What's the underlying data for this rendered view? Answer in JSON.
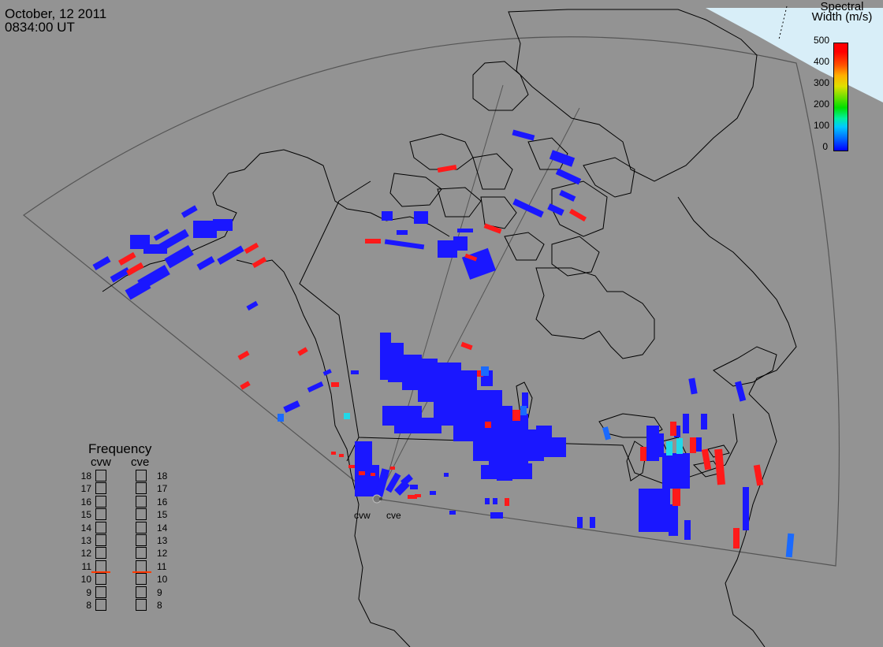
{
  "header": {
    "date": "October, 12 2011",
    "time": "0834:00 UT"
  },
  "colorbar": {
    "title_line1": "Spectral",
    "title_line2": "Width (m/s)",
    "ticks": [
      "500",
      "400",
      "300",
      "200",
      "100",
      "0"
    ],
    "range": [
      0,
      500
    ]
  },
  "frequency_panel": {
    "title": "Frequency",
    "radars": [
      "cvw",
      "cve"
    ],
    "scale": [
      "18",
      "17",
      "16",
      "15",
      "14",
      "13",
      "12",
      "11",
      "10",
      "9",
      "8"
    ],
    "current_mhz": {
      "cvw": 10.6,
      "cve": 10.6
    }
  },
  "sites": [
    "cvw",
    "cve"
  ],
  "colors": {
    "background": "#939393",
    "low_width": "#1a17ff",
    "high_width": "#ff1a1a",
    "mid_width": "#1a6aff",
    "cyan": "#22d8e8",
    "ice": "#d8eef8"
  }
}
